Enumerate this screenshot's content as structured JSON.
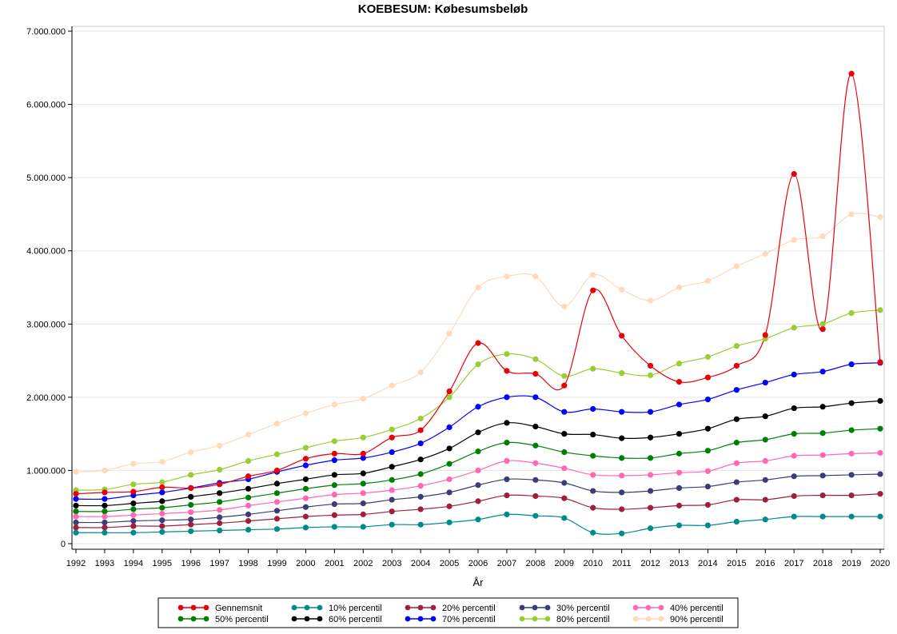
{
  "chart_data": {
    "type": "line",
    "title": "KOEBESUM: Købesumsbeløb",
    "xlabel": "År",
    "ylabel": "",
    "ylim": [
      0,
      7000000
    ],
    "yticks": [
      "0",
      "1.000.000",
      "2.000.000",
      "3.000.000",
      "4.000.000",
      "5.000.000",
      "6.000.000",
      "7.000.000"
    ],
    "ytick_values": [
      0,
      1000000,
      2000000,
      3000000,
      4000000,
      5000000,
      6000000,
      7000000
    ],
    "grid": "horizontal",
    "legend_position": "bottom",
    "x": [
      "1992",
      "1993",
      "1994",
      "1995",
      "1996",
      "1997",
      "1998",
      "1999",
      "2000",
      "2001",
      "2002",
      "2003",
      "2004",
      "2005",
      "2006",
      "2007",
      "2008",
      "2009",
      "2010",
      "2011",
      "2012",
      "2013",
      "2014",
      "2015",
      "2016",
      "2017",
      "2018",
      "2019",
      "2020"
    ],
    "series": [
      {
        "name": "Gennemsnit",
        "color": "#e8000b",
        "values": [
          680000,
          700000,
          710000,
          770000,
          760000,
          810000,
          920000,
          1000000,
          1160000,
          1230000,
          1230000,
          1450000,
          1550000,
          2080000,
          2740000,
          2360000,
          2320000,
          2160000,
          3460000,
          2840000,
          2430000,
          2210000,
          2270000,
          2430000,
          2850000,
          5050000,
          2930000,
          6420000,
          2480000
        ]
      },
      {
        "name": "10% percentil",
        "color": "#008b8b",
        "values": [
          150000,
          150000,
          150000,
          160000,
          170000,
          180000,
          190000,
          200000,
          220000,
          230000,
          230000,
          260000,
          260000,
          290000,
          330000,
          400000,
          380000,
          350000,
          150000,
          140000,
          210000,
          250000,
          250000,
          300000,
          330000,
          370000,
          370000,
          370000,
          370000
        ]
      },
      {
        "name": "20% percentil",
        "color": "#a0203c",
        "values": [
          220000,
          220000,
          240000,
          240000,
          260000,
          280000,
          310000,
          340000,
          370000,
          390000,
          400000,
          440000,
          470000,
          510000,
          580000,
          660000,
          650000,
          620000,
          490000,
          470000,
          490000,
          520000,
          530000,
          600000,
          600000,
          650000,
          660000,
          660000,
          680000
        ]
      },
      {
        "name": "30% percentil",
        "color": "#3c3c78",
        "values": [
          290000,
          290000,
          310000,
          320000,
          330000,
          360000,
          400000,
          450000,
          500000,
          540000,
          550000,
          600000,
          640000,
          700000,
          800000,
          880000,
          870000,
          830000,
          720000,
          700000,
          720000,
          760000,
          780000,
          840000,
          870000,
          920000,
          930000,
          940000,
          950000
        ]
      },
      {
        "name": "40% percentil",
        "color": "#ff69b4",
        "values": [
          370000,
          370000,
          390000,
          410000,
          430000,
          460000,
          520000,
          570000,
          620000,
          670000,
          690000,
          730000,
          790000,
          880000,
          1000000,
          1130000,
          1100000,
          1030000,
          940000,
          930000,
          940000,
          970000,
          990000,
          1100000,
          1130000,
          1200000,
          1210000,
          1230000,
          1240000
        ]
      },
      {
        "name": "50% percentil",
        "color": "#008000",
        "values": [
          440000,
          440000,
          470000,
          490000,
          530000,
          570000,
          630000,
          690000,
          750000,
          800000,
          820000,
          870000,
          950000,
          1090000,
          1260000,
          1380000,
          1340000,
          1250000,
          1200000,
          1170000,
          1170000,
          1230000,
          1270000,
          1380000,
          1420000,
          1500000,
          1510000,
          1550000,
          1570000
        ]
      },
      {
        "name": "60% percentil",
        "color": "#000000",
        "values": [
          520000,
          520000,
          550000,
          580000,
          640000,
          690000,
          750000,
          820000,
          880000,
          940000,
          960000,
          1050000,
          1150000,
          1300000,
          1520000,
          1650000,
          1600000,
          1500000,
          1490000,
          1440000,
          1450000,
          1500000,
          1570000,
          1700000,
          1740000,
          1850000,
          1870000,
          1920000,
          1950000
        ]
      },
      {
        "name": "70% percentil",
        "color": "#0000ff",
        "values": [
          610000,
          610000,
          660000,
          700000,
          760000,
          830000,
          880000,
          980000,
          1070000,
          1140000,
          1170000,
          1250000,
          1370000,
          1590000,
          1870000,
          2000000,
          2000000,
          1800000,
          1840000,
          1800000,
          1800000,
          1900000,
          1970000,
          2100000,
          2200000,
          2310000,
          2350000,
          2450000,
          2470000
        ]
      },
      {
        "name": "80% percentil",
        "color": "#9acd32",
        "values": [
          730000,
          740000,
          810000,
          840000,
          940000,
          1010000,
          1130000,
          1220000,
          1310000,
          1400000,
          1450000,
          1560000,
          1710000,
          2000000,
          2450000,
          2590000,
          2520000,
          2290000,
          2390000,
          2330000,
          2300000,
          2460000,
          2550000,
          2700000,
          2800000,
          2950000,
          3000000,
          3150000,
          3190000
        ]
      },
      {
        "name": "90% percentil",
        "color": "#ffdab9",
        "values": [
          980000,
          1000000,
          1090000,
          1120000,
          1250000,
          1340000,
          1490000,
          1640000,
          1780000,
          1900000,
          1980000,
          2160000,
          2340000,
          2870000,
          3500000,
          3650000,
          3650000,
          3240000,
          3670000,
          3470000,
          3320000,
          3500000,
          3590000,
          3790000,
          3960000,
          4150000,
          4200000,
          4500000,
          4460000
        ]
      }
    ]
  }
}
